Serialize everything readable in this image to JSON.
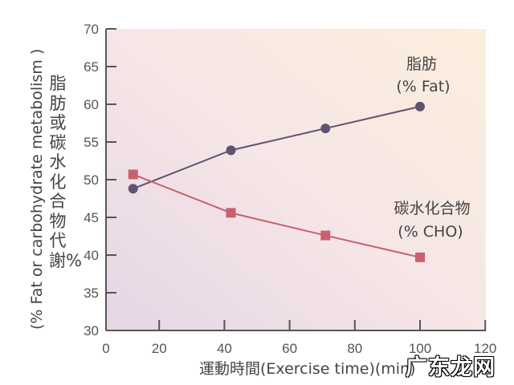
{
  "chart_data": {
    "type": "line",
    "title": "",
    "xlabel": "運動時間(Exercise time)(min)",
    "ylabel_cn": "脂肪或碳水化合物代謝%",
    "ylabel_en": "(% Fat or carbohydrate metabolism )",
    "xlim": [
      0,
      120
    ],
    "ylim": [
      30,
      70
    ],
    "xticks": [
      0,
      20,
      40,
      60,
      80,
      100,
      120
    ],
    "yticks": [
      30,
      35,
      40,
      45,
      50,
      55,
      60,
      65,
      70
    ],
    "grid": false,
    "series": [
      {
        "name_cn": "脂肪",
        "name_en": "(% Fat)",
        "color": "#5e5470",
        "marker": "circle",
        "x": [
          12,
          42,
          71,
          100
        ],
        "y": [
          48.8,
          53.9,
          56.8,
          59.7
        ]
      },
      {
        "name_cn": "碳水化合物",
        "name_en": "(% CHO)",
        "color": "#c8606e",
        "marker": "square",
        "x": [
          12,
          42,
          71,
          100
        ],
        "y": [
          50.7,
          45.6,
          42.6,
          39.7
        ]
      }
    ]
  },
  "watermark": "广东龙网"
}
